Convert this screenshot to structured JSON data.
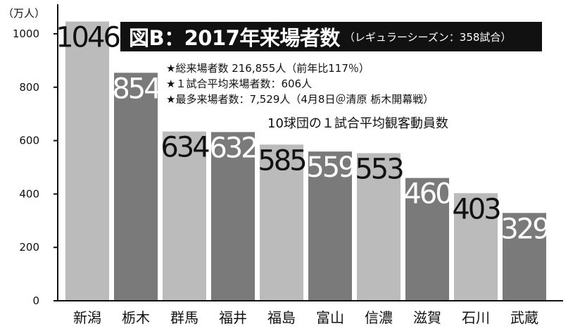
{
  "title": {
    "main": "図B：2017年来場者数",
    "sub": "（レギュラーシーズン：358試合）"
  },
  "notes": [
    "★総来場者数 216,855人（前年比117％）",
    "★１試合平均来場者数：606人",
    "★最多来場者数：7,529人（4月8日＠清原 栃木開幕戦）"
  ],
  "chart_caption": "10球団の１試合平均観客動員数",
  "y_unit": "（万人）",
  "colors": {
    "light_bar": "#bbbbbb",
    "dark_bar": "#7a7a7a",
    "title_bg": "#111111",
    "axis": "#111111"
  },
  "chart_data": {
    "type": "bar",
    "categories": [
      "新潟",
      "栃木",
      "群馬",
      "福井",
      "福島",
      "富山",
      "信濃",
      "滋賀",
      "石川",
      "武蔵"
    ],
    "values": [
      1046,
      854,
      634,
      632,
      585,
      559,
      553,
      460,
      403,
      329
    ],
    "bar_shades": [
      "light",
      "dark",
      "light",
      "dark",
      "light",
      "dark",
      "light",
      "dark",
      "light",
      "dark"
    ],
    "label_colors": [
      "dark",
      "light",
      "dark",
      "light",
      "dark",
      "light",
      "dark",
      "light",
      "dark",
      "light"
    ],
    "y_ticks": [
      0,
      200,
      400,
      600,
      800,
      1000
    ],
    "ylim": [
      0,
      1100
    ],
    "grid": false,
    "legend": "none"
  }
}
